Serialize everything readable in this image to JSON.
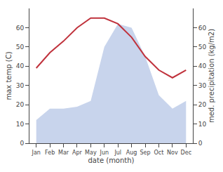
{
  "chart_data": {
    "type": "line",
    "categories": [
      "Jan",
      "Feb",
      "Mar",
      "Apr",
      "May",
      "Jun",
      "Jul",
      "Aug",
      "Sep",
      "Oct",
      "Nov",
      "Dec"
    ],
    "xlabel": "date (month)",
    "ylabel": "max temp (C)",
    "y2label": "med. precipitation (kg/m2)",
    "series": [
      {
        "type": "area",
        "color": "#c8d4ec",
        "axis": "y2",
        "values": [
          12,
          18,
          18,
          19,
          22,
          50,
          62,
          60,
          45,
          25,
          18,
          22
        ]
      },
      {
        "type": "line",
        "color": "#c0323c",
        "values": [
          39,
          47,
          53,
          60,
          65,
          65,
          62,
          55,
          45,
          38,
          34,
          38
        ]
      }
    ],
    "ylim": [
      0,
      70
    ],
    "yticks": [
      0,
      10,
      20,
      30,
      40,
      50,
      60
    ],
    "y2lim": [
      0,
      70
    ],
    "y2ticks": [
      0,
      10,
      20,
      30,
      40,
      50,
      60
    ],
    "grid": false
  }
}
